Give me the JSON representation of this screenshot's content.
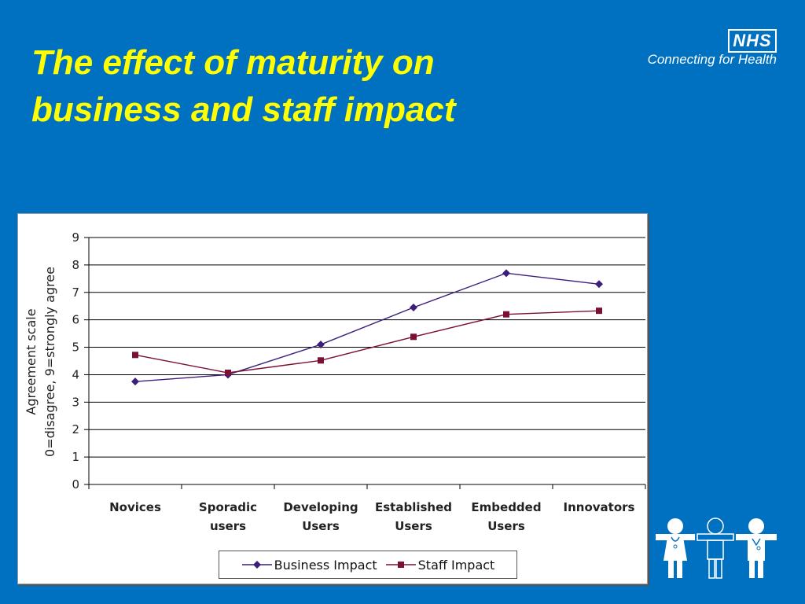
{
  "slide": {
    "title_line1": "The effect of maturity on",
    "title_line2": "business and staff  impact"
  },
  "logo": {
    "badge": "NHS",
    "tagline": "Connecting for Health"
  },
  "colors": {
    "background": "#0070c0",
    "title": "#ffff00",
    "business_series": "#3c1f7a",
    "staff_series": "#7a1035"
  },
  "chart_data": {
    "type": "line",
    "categories": [
      [
        "Novices"
      ],
      [
        "Sporadic",
        "users"
      ],
      [
        "Developing",
        "Users"
      ],
      [
        "Established",
        "Users"
      ],
      [
        "Embedded",
        "Users"
      ],
      [
        "Innovators"
      ]
    ],
    "ylabel_line1": "Agreement scale",
    "ylabel_line2": "0=disagree, 9=strongly agree",
    "ylim": [
      0,
      9
    ],
    "yticks": [
      "0",
      "1",
      "2",
      "3",
      "4",
      "5",
      "6",
      "7",
      "8",
      "9"
    ],
    "grid": true,
    "legend_position": "bottom",
    "series": [
      {
        "name": "Business Impact",
        "marker": "diamond",
        "values": [
          3.75,
          4.0,
          5.1,
          6.45,
          7.7,
          7.3
        ]
      },
      {
        "name": "Staff Impact",
        "marker": "square",
        "values": [
          4.72,
          4.07,
          4.52,
          5.38,
          6.2,
          6.33
        ]
      }
    ]
  }
}
